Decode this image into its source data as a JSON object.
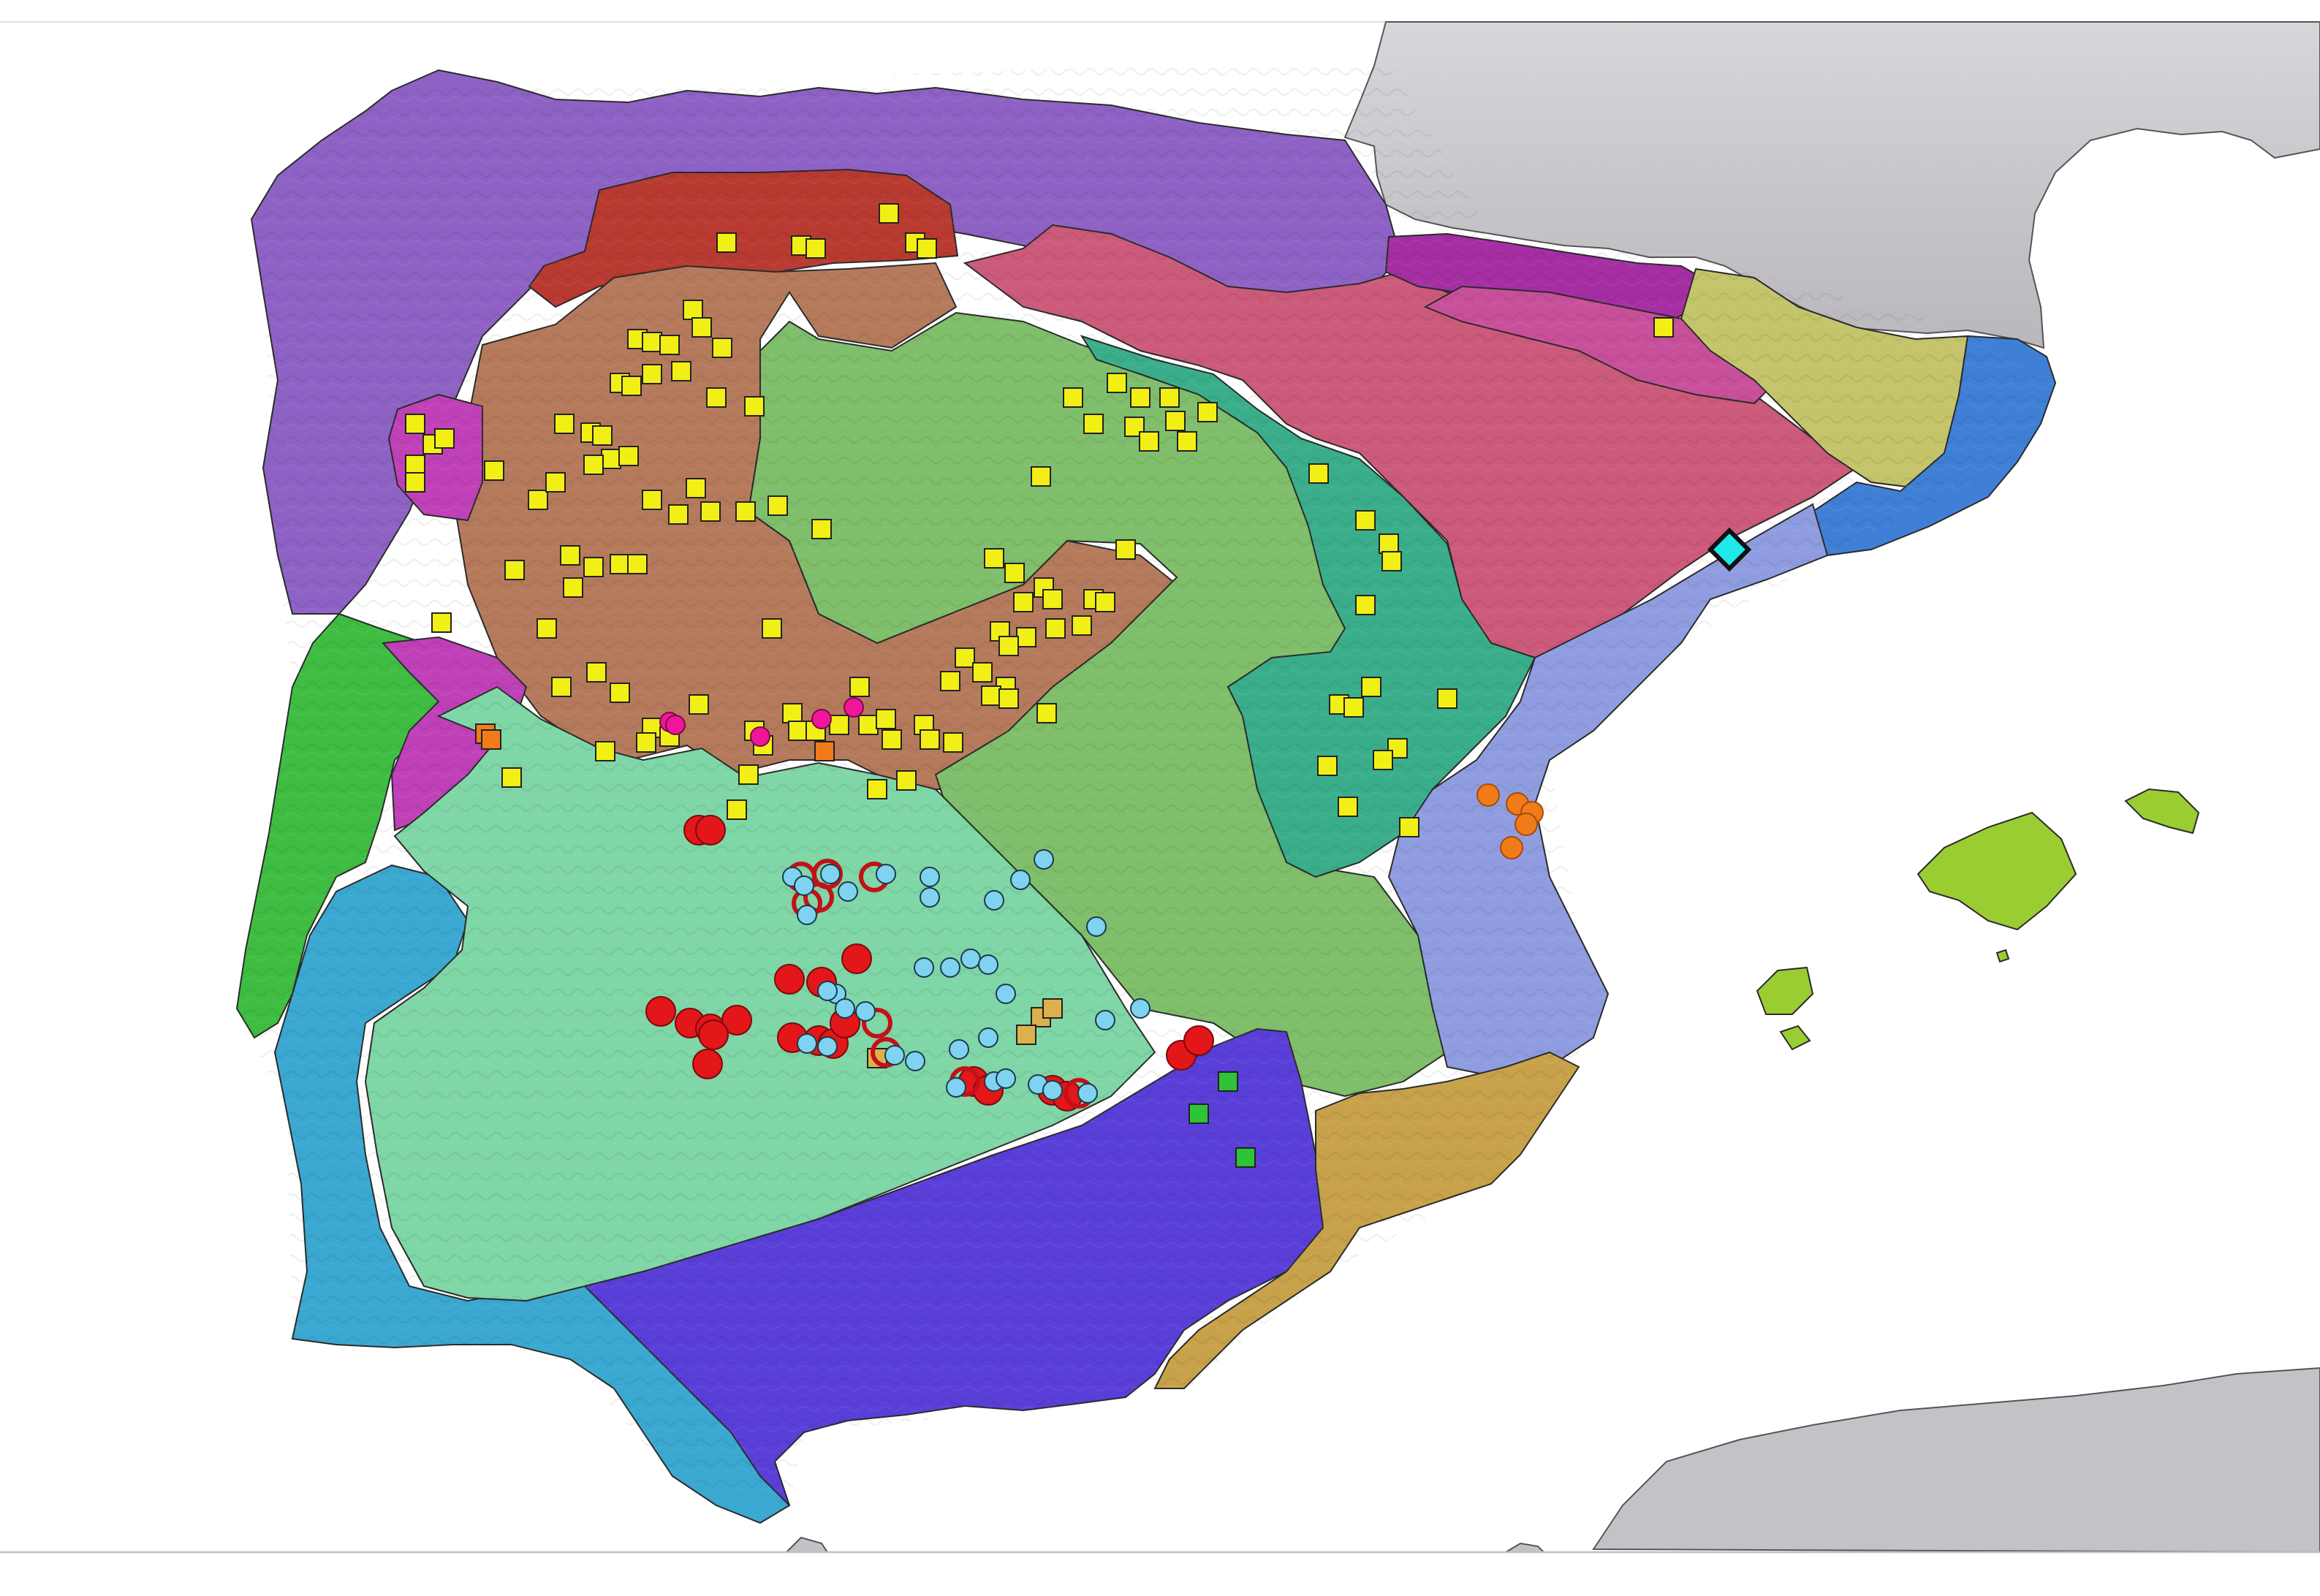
{
  "map": {
    "colors": {
      "sea": "#ffffff",
      "land_grey": "#c9c7cc",
      "land_grey_dark": "#a9a7ad",
      "border": "#2b2b2b"
    },
    "regions": [
      {
        "name": "galician-cantabrian-region",
        "color": "#8d62c4"
      },
      {
        "name": "cantabrian-mountains-region",
        "color": "#b83a30"
      },
      {
        "name": "northwest-plateau-region",
        "color": "#b57a5c"
      },
      {
        "name": "duero-basin-region",
        "color": "#7fbe6a"
      },
      {
        "name": "ebro-basin-region",
        "color": "#cc5a7a"
      },
      {
        "name": "iberian-range-region",
        "color": "#3aae8a"
      },
      {
        "name": "pyrenees-west-region",
        "color": "#a52ea3"
      },
      {
        "name": "pyrenees-east-region",
        "color": "#c4c46a"
      },
      {
        "name": "catalan-coast-region",
        "color": "#3f7fd6"
      },
      {
        "name": "levantine-region",
        "color": "#8f9de0"
      },
      {
        "name": "portuguese-coast-region",
        "color": "#3fbd42"
      },
      {
        "name": "galician-west-region",
        "color": "#c040b8"
      },
      {
        "name": "southwest-region",
        "color": "#3aa8d0"
      },
      {
        "name": "central-south-region",
        "color": "#7fd6a6"
      },
      {
        "name": "betic-region",
        "color": "#5a3ed8"
      },
      {
        "name": "southeast-region",
        "color": "#c8a24a"
      },
      {
        "name": "balearic-region",
        "color": "#9acd32"
      }
    ],
    "marker_types": [
      {
        "name": "yellow-square",
        "shape": "square",
        "fill": "#f2ef16",
        "stroke": "#222222"
      },
      {
        "name": "orange-square",
        "shape": "square",
        "fill": "#f07b18",
        "stroke": "#222222"
      },
      {
        "name": "tan-square",
        "shape": "square",
        "fill": "#dcb04a",
        "stroke": "#222222"
      },
      {
        "name": "green-square",
        "shape": "square",
        "fill": "#2ec436",
        "stroke": "#222222"
      },
      {
        "name": "magenta-circle",
        "shape": "circle",
        "fill": "#f0169c",
        "stroke": "#7a0a4a"
      },
      {
        "name": "red-circle",
        "shape": "circle",
        "fill": "#e3161a",
        "stroke": "#7a0a0a"
      },
      {
        "name": "red-ring",
        "shape": "ring",
        "fill": "none",
        "stroke": "#c41018"
      },
      {
        "name": "lightblue-circle",
        "shape": "circle",
        "fill": "#7fd3f0",
        "stroke": "#1c3a4a"
      },
      {
        "name": "orange-circle",
        "shape": "circle",
        "fill": "#f07b18",
        "stroke": "#a84a08"
      },
      {
        "name": "cyan-diamond",
        "shape": "diamond",
        "fill": "#1fe8e8",
        "stroke": "#111111"
      }
    ]
  }
}
